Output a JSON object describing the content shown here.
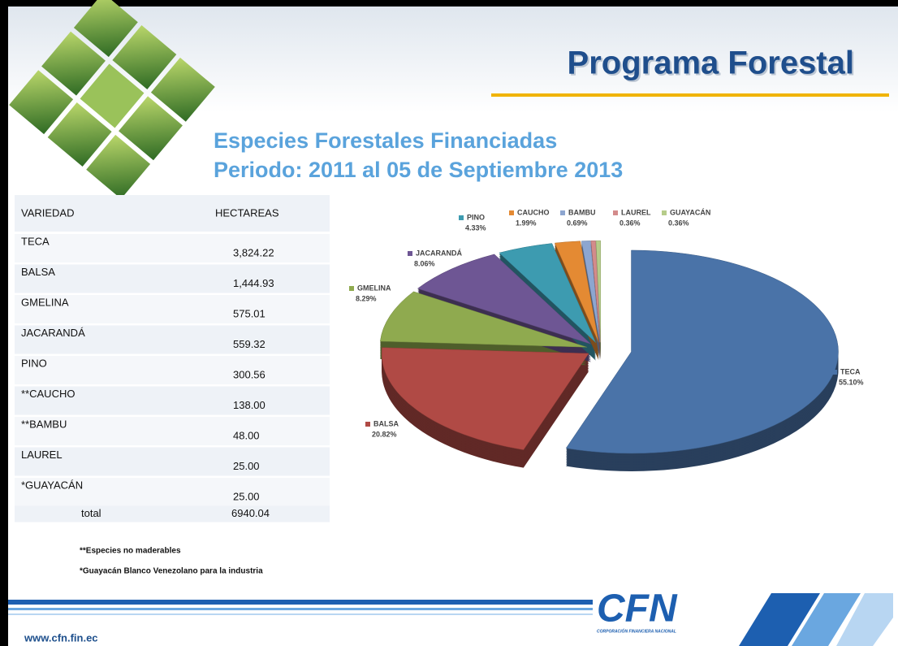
{
  "header": {
    "title": "Programa Forestal"
  },
  "subtitle": [
    "Especies Forestales Financiadas",
    "Periodo: 2011 al 05 de Septiembre 2013"
  ],
  "table": {
    "header": [
      "VARIEDAD",
      "HECTAREAS"
    ],
    "rows": [
      [
        "TECA",
        "3,824.22"
      ],
      [
        "BALSA",
        "1,444.93"
      ],
      [
        "GMELINA",
        "575.01"
      ],
      [
        "JACARANDÁ",
        "559.32"
      ],
      [
        "PINO",
        "300.56"
      ],
      [
        "**CAUCHO",
        "138.00"
      ],
      [
        "**BAMBU",
        "48.00"
      ],
      [
        "LAUREL",
        "25.00"
      ],
      [
        "*GUAYACÁN",
        "25.00"
      ]
    ],
    "total": [
      "total",
      "6940.04"
    ]
  },
  "notes": [
    "**Especies no maderables",
    "*Guayacán Blanco Venezolano para la industria"
  ],
  "chart_data": {
    "type": "pie",
    "categories": [
      "TECA",
      "BALSA",
      "GMELINA",
      "JACARANDÁ",
      "PINO",
      "CAUCHO",
      "BAMBU",
      "LAUREL",
      "GUAYACÁN"
    ],
    "values": [
      55.1,
      20.82,
      8.29,
      8.06,
      4.33,
      1.99,
      0.69,
      0.36,
      0.36
    ],
    "value_labels": [
      "55.10%",
      "20.82%",
      "8.29%",
      "8.06%",
      "4.33%",
      "1.99%",
      "0.69%",
      "0.36%",
      "0.36%"
    ],
    "colors": [
      "#4a73a8",
      "#b04a45",
      "#8faa4f",
      "#6e5694",
      "#3d9bb0",
      "#e48a33",
      "#8da6d0",
      "#d38b8b",
      "#b6cc8a"
    ]
  },
  "footer": {
    "url": "www.cfn.fin.ec",
    "logo": "CFN",
    "logo_caption": "CORPORACIÓN FINANCIERA NACIONAL"
  }
}
